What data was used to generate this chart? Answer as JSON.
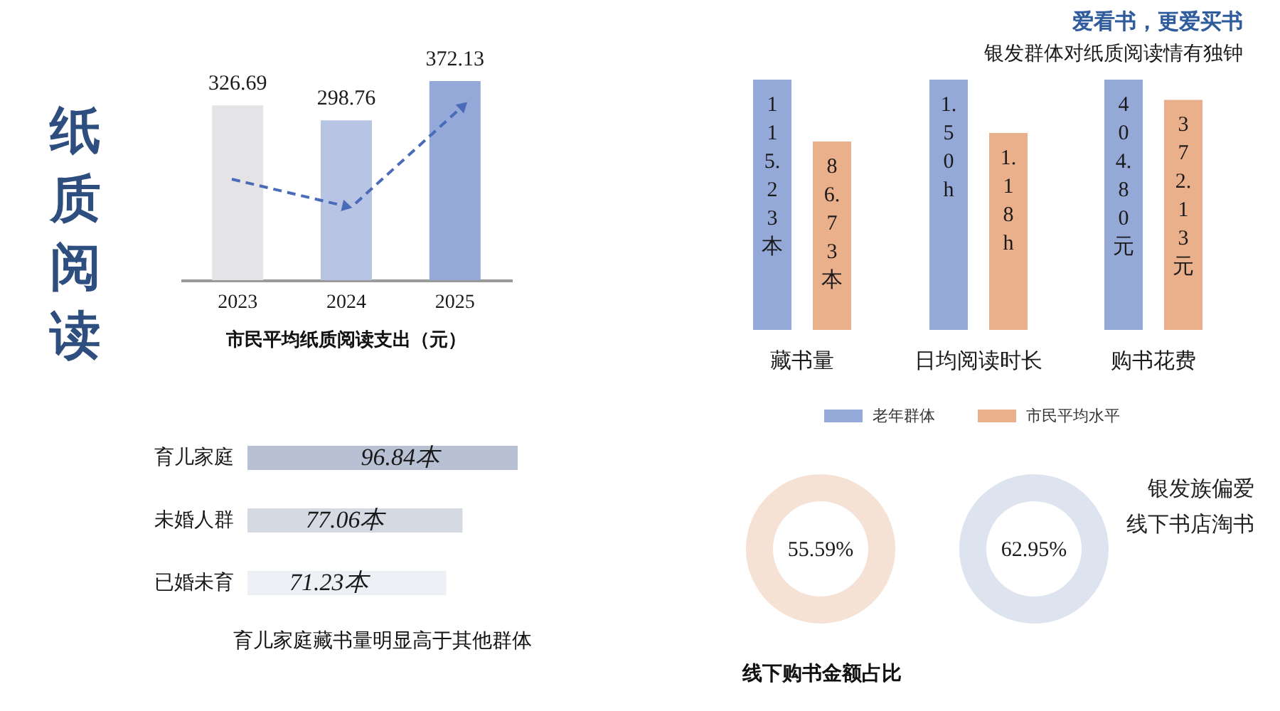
{
  "chart_data": [
    {
      "type": "other",
      "title": "纸质阅读"
    },
    {
      "type": "bar",
      "title": "市民平均纸质阅读支出（元）",
      "categories": [
        "2023",
        "2024",
        "2025"
      ],
      "values": [
        326.69,
        298.76,
        372.13
      ],
      "colors": [
        "#e4e3e6",
        "#b7c4e3",
        "#94a9d8"
      ],
      "data_labels": true
    },
    {
      "type": "other",
      "title": "爱看书，更爱买书",
      "subtitle": "银发群体对纸质阅读情有独钟"
    },
    {
      "type": "bar",
      "categories": [
        "藏书量"
      ],
      "series": [
        {
          "color": "#94a9d8",
          "values": [
            115.23
          ],
          "value_labels": [
            "115.23本"
          ]
        },
        {
          "color": "#eab08c",
          "values": [
            86.73
          ],
          "value_labels": [
            "86.73本"
          ]
        }
      ]
    },
    {
      "type": "bar",
      "categories": [
        "日均阅读时长"
      ],
      "series": [
        {
          "name": "老年群体",
          "color": "#94a9d8",
          "values": [
            1.5
          ],
          "value_labels": [
            "1.50h"
          ]
        },
        {
          "name": "市民平均水平",
          "color": "#eab08c",
          "values": [
            1.18
          ],
          "value_labels": [
            "1.18h"
          ]
        }
      ],
      "legend": "bottom"
    },
    {
      "type": "bar",
      "categories": [
        "购书花费"
      ],
      "series": [
        {
          "color": "#94a9d8",
          "values": [
            404.8
          ],
          "value_labels": [
            "404.80元"
          ]
        },
        {
          "color": "#eab08c",
          "values": [
            372.13
          ],
          "value_labels": [
            "372.13元"
          ]
        }
      ]
    },
    {
      "type": "bar",
      "orientation": "horizontal",
      "title": "育儿家庭藏书量明显高于其他群体",
      "categories": [
        "育儿家庭",
        "未婚人群",
        "已婚未育"
      ],
      "values": [
        96.84,
        77.06,
        71.23
      ],
      "colors": [
        "#b8c1d4",
        "#d4d9e2",
        "#edf0f5"
      ],
      "value_labels": [
        "96.84本",
        "77.06本",
        "71.23本"
      ]
    },
    {
      "type": "donut",
      "title": "线下购书金额占比",
      "categories": [
        null,
        null
      ],
      "values": [
        55.59,
        44.41
      ],
      "colors": [
        "#f6e2d5",
        "#f6e2d5"
      ],
      "value_labels": [
        "55.59%",
        null
      ]
    },
    {
      "type": "donut",
      "categories": [
        null,
        null
      ],
      "values": [
        62.95,
        37.05
      ],
      "colors": [
        "#dde4f0",
        "#dde4f0"
      ],
      "value_labels": [
        "62.95%",
        null
      ],
      "annotations": [
        "银发族偏爱",
        "线下书店淘书"
      ]
    }
  ]
}
